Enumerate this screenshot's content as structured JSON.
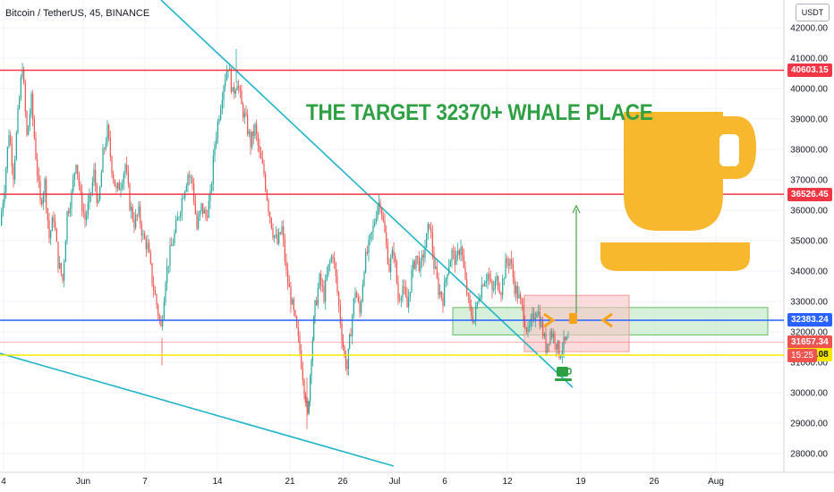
{
  "header": {
    "symbol": "Bitcoin / TetherUS, 45, BINANCE"
  },
  "price_axis": {
    "unit": "USDT"
  },
  "annotation": {
    "text": "THE TARGET 32370+ WHALE PLACE"
  },
  "colors": {
    "resistance": "#f23645",
    "support_blue": "#2962ff",
    "support_yellow": "#f5e700",
    "trendline": "#22b5c9",
    "up_candle": "#26a69a",
    "down_candle": "#ef5350",
    "zone_green": "#b7e4b9",
    "zone_red": "#f8c5c5",
    "mug": "#f7b82e",
    "arrow": "#43a047"
  },
  "icons": [
    "coffee-mug-icon",
    "small-coffee-icon",
    "arrow-icons"
  ],
  "chart_data": {
    "type": "candlestick",
    "title": "Bitcoin / TetherUS, 45, BINANCE",
    "ylim": [
      27500,
      42500
    ],
    "y_ticks": [
      28000,
      29000,
      30000,
      31000,
      32000,
      33000,
      34000,
      35000,
      36000,
      37000,
      38000,
      39000,
      40000,
      41000,
      42000
    ],
    "y_tick_labels": [
      "28000.00",
      "29000.00",
      "30000.00",
      "31000.00",
      "32000.00",
      "33000.00",
      "34000.00",
      "35000.00",
      "36000.00",
      "37000.00",
      "38000.00",
      "39000.00",
      "40000.00",
      "41000.00",
      "42000.00"
    ],
    "x_tick_labels": [
      "4",
      "Jun",
      "7",
      "14",
      "21",
      "26",
      "Jul",
      "6",
      "12",
      "19",
      "26",
      "Aug"
    ],
    "horizontal_levels": [
      {
        "label": "40603.15",
        "value": 40603.15,
        "color": "resistance"
      },
      {
        "label": "36526.45",
        "value": 36526.45,
        "color": "resistance"
      },
      {
        "label": "32383.24",
        "value": 32383.24,
        "color": "support_blue"
      },
      {
        "label": "31657.34",
        "value": 31657.34,
        "color": "down_candle"
      },
      {
        "label": "31236.08",
        "value": 31236.08,
        "color": "support_yellow"
      }
    ],
    "last_price_countdown": "15:25",
    "price_path": [
      [
        0,
        35500
      ],
      [
        5,
        36800
      ],
      [
        10,
        38600
      ],
      [
        15,
        37200
      ],
      [
        20,
        39100
      ],
      [
        25,
        40800
      ],
      [
        30,
        38400
      ],
      [
        35,
        39600
      ],
      [
        40,
        37800
      ],
      [
        45,
        36200
      ],
      [
        50,
        36900
      ],
      [
        55,
        35100
      ],
      [
        60,
        35800
      ],
      [
        65,
        34300
      ],
      [
        70,
        33700
      ],
      [
        75,
        35900
      ],
      [
        80,
        36500
      ],
      [
        85,
        37700
      ],
      [
        90,
        36400
      ],
      [
        95,
        35700
      ],
      [
        100,
        36300
      ],
      [
        105,
        37200
      ],
      [
        110,
        36100
      ],
      [
        115,
        37800
      ],
      [
        120,
        38600
      ],
      [
        125,
        37400
      ],
      [
        130,
        36600
      ],
      [
        135,
        36900
      ],
      [
        140,
        37500
      ],
      [
        145,
        36200
      ],
      [
        150,
        35600
      ],
      [
        155,
        35900
      ],
      [
        160,
        35100
      ],
      [
        165,
        34800
      ],
      [
        170,
        33700
      ],
      [
        175,
        32900
      ],
      [
        180,
        32100
      ],
      [
        185,
        33800
      ],
      [
        190,
        34600
      ],
      [
        195,
        35200
      ],
      [
        200,
        35900
      ],
      [
        205,
        36600
      ],
      [
        210,
        37200
      ],
      [
        215,
        36900
      ],
      [
        220,
        35400
      ],
      [
        225,
        36100
      ],
      [
        230,
        35800
      ],
      [
        235,
        36400
      ],
      [
        240,
        38200
      ],
      [
        245,
        39200
      ],
      [
        250,
        40200
      ],
      [
        255,
        40800
      ],
      [
        260,
        39800
      ],
      [
        265,
        40300
      ],
      [
        270,
        39400
      ],
      [
        275,
        38900
      ],
      [
        280,
        38200
      ],
      [
        285,
        38700
      ],
      [
        290,
        37800
      ],
      [
        295,
        37200
      ],
      [
        300,
        36100
      ],
      [
        305,
        35300
      ],
      [
        310,
        34900
      ],
      [
        315,
        35400
      ],
      [
        320,
        33900
      ],
      [
        325,
        33100
      ],
      [
        330,
        32300
      ],
      [
        335,
        31400
      ],
      [
        340,
        30200
      ],
      [
        344,
        29200
      ],
      [
        348,
        31300
      ],
      [
        352,
        32800
      ],
      [
        357,
        33700
      ],
      [
        362,
        33200
      ],
      [
        367,
        34100
      ],
      [
        372,
        34600
      ],
      [
        377,
        33300
      ],
      [
        382,
        31900
      ],
      [
        385,
        31200
      ],
      [
        388,
        30800
      ],
      [
        392,
        32100
      ],
      [
        397,
        33400
      ],
      [
        402,
        32600
      ],
      [
        407,
        34200
      ],
      [
        412,
        34800
      ],
      [
        417,
        35400
      ],
      [
        422,
        36200
      ],
      [
        425,
        36300
      ],
      [
        430,
        35200
      ],
      [
        435,
        34100
      ],
      [
        440,
        34700
      ],
      [
        445,
        33100
      ],
      [
        450,
        33500
      ],
      [
        455,
        32800
      ],
      [
        460,
        33900
      ],
      [
        465,
        34500
      ],
      [
        470,
        34100
      ],
      [
        475,
        34800
      ],
      [
        480,
        35600
      ],
      [
        485,
        34200
      ],
      [
        490,
        33400
      ],
      [
        495,
        33100
      ],
      [
        500,
        34100
      ],
      [
        505,
        34600
      ],
      [
        510,
        34300
      ],
      [
        515,
        34900
      ],
      [
        520,
        33600
      ],
      [
        525,
        32700
      ],
      [
        530,
        32400
      ],
      [
        535,
        33200
      ],
      [
        540,
        33700
      ],
      [
        545,
        33900
      ],
      [
        550,
        33300
      ],
      [
        555,
        33700
      ],
      [
        560,
        33400
      ],
      [
        565,
        34200
      ],
      [
        570,
        34400
      ],
      [
        575,
        33500
      ],
      [
        580,
        33100
      ],
      [
        585,
        32600
      ],
      [
        590,
        31900
      ],
      [
        595,
        32400
      ],
      [
        600,
        32800
      ],
      [
        605,
        32200
      ],
      [
        610,
        31500
      ],
      [
        615,
        32000
      ],
      [
        620,
        31800
      ],
      [
        625,
        31300
      ],
      [
        630,
        31600
      ],
      [
        635,
        31700
      ]
    ]
  }
}
